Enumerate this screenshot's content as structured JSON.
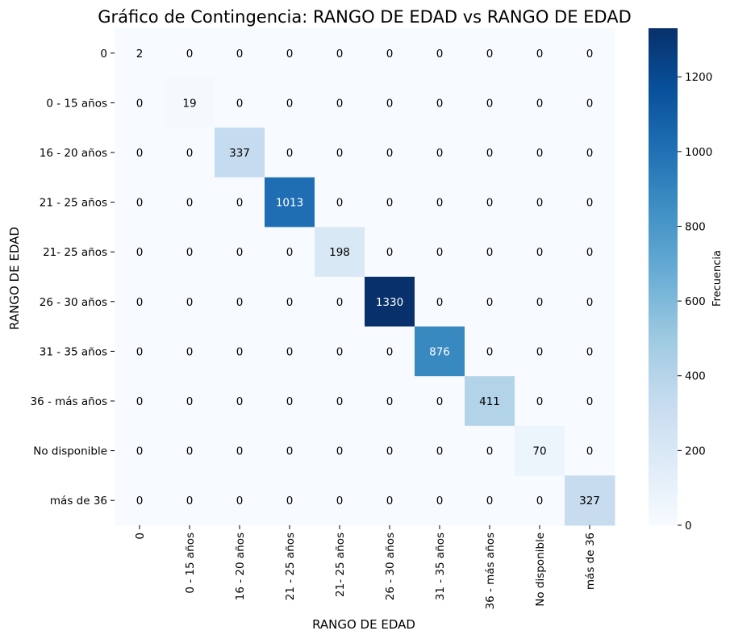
{
  "chart_data": {
    "type": "heatmap",
    "title": "Gráfico de Contingencia: RANGO DE EDAD vs RANGO DE EDAD",
    "xlabel": "RANGO DE EDAD",
    "ylabel": "RANGO DE EDAD",
    "colorbar_label": "Frecuencia",
    "colormap": "Blues",
    "color_min": "#f7fbff",
    "color_max": "#08306b",
    "vmin": 0,
    "vmax": 1330,
    "colorbar_ticks": [
      0,
      200,
      400,
      600,
      800,
      1000,
      1200
    ],
    "row_labels": [
      "0",
      "0 - 15 años",
      "16 - 20 años",
      "21 - 25 años",
      "21- 25 años",
      "26 - 30 años",
      "31 - 35 años",
      "36 - más años",
      "No disponible",
      "más de 36"
    ],
    "col_labels": [
      "0",
      "0 - 15 años",
      "16 - 20 años",
      "21 - 25 años",
      "21- 25 años",
      "26 - 30 años",
      "31 - 35 años",
      "36 - más años",
      "No disponible",
      "más de 36"
    ],
    "values": [
      [
        2,
        0,
        0,
        0,
        0,
        0,
        0,
        0,
        0,
        0
      ],
      [
        0,
        19,
        0,
        0,
        0,
        0,
        0,
        0,
        0,
        0
      ],
      [
        0,
        0,
        337,
        0,
        0,
        0,
        0,
        0,
        0,
        0
      ],
      [
        0,
        0,
        0,
        1013,
        0,
        0,
        0,
        0,
        0,
        0
      ],
      [
        0,
        0,
        0,
        0,
        198,
        0,
        0,
        0,
        0,
        0
      ],
      [
        0,
        0,
        0,
        0,
        0,
        1330,
        0,
        0,
        0,
        0
      ],
      [
        0,
        0,
        0,
        0,
        0,
        0,
        876,
        0,
        0,
        0
      ],
      [
        0,
        0,
        0,
        0,
        0,
        0,
        0,
        411,
        0,
        0
      ],
      [
        0,
        0,
        0,
        0,
        0,
        0,
        0,
        0,
        70,
        0
      ],
      [
        0,
        0,
        0,
        0,
        0,
        0,
        0,
        0,
        0,
        327
      ]
    ]
  }
}
